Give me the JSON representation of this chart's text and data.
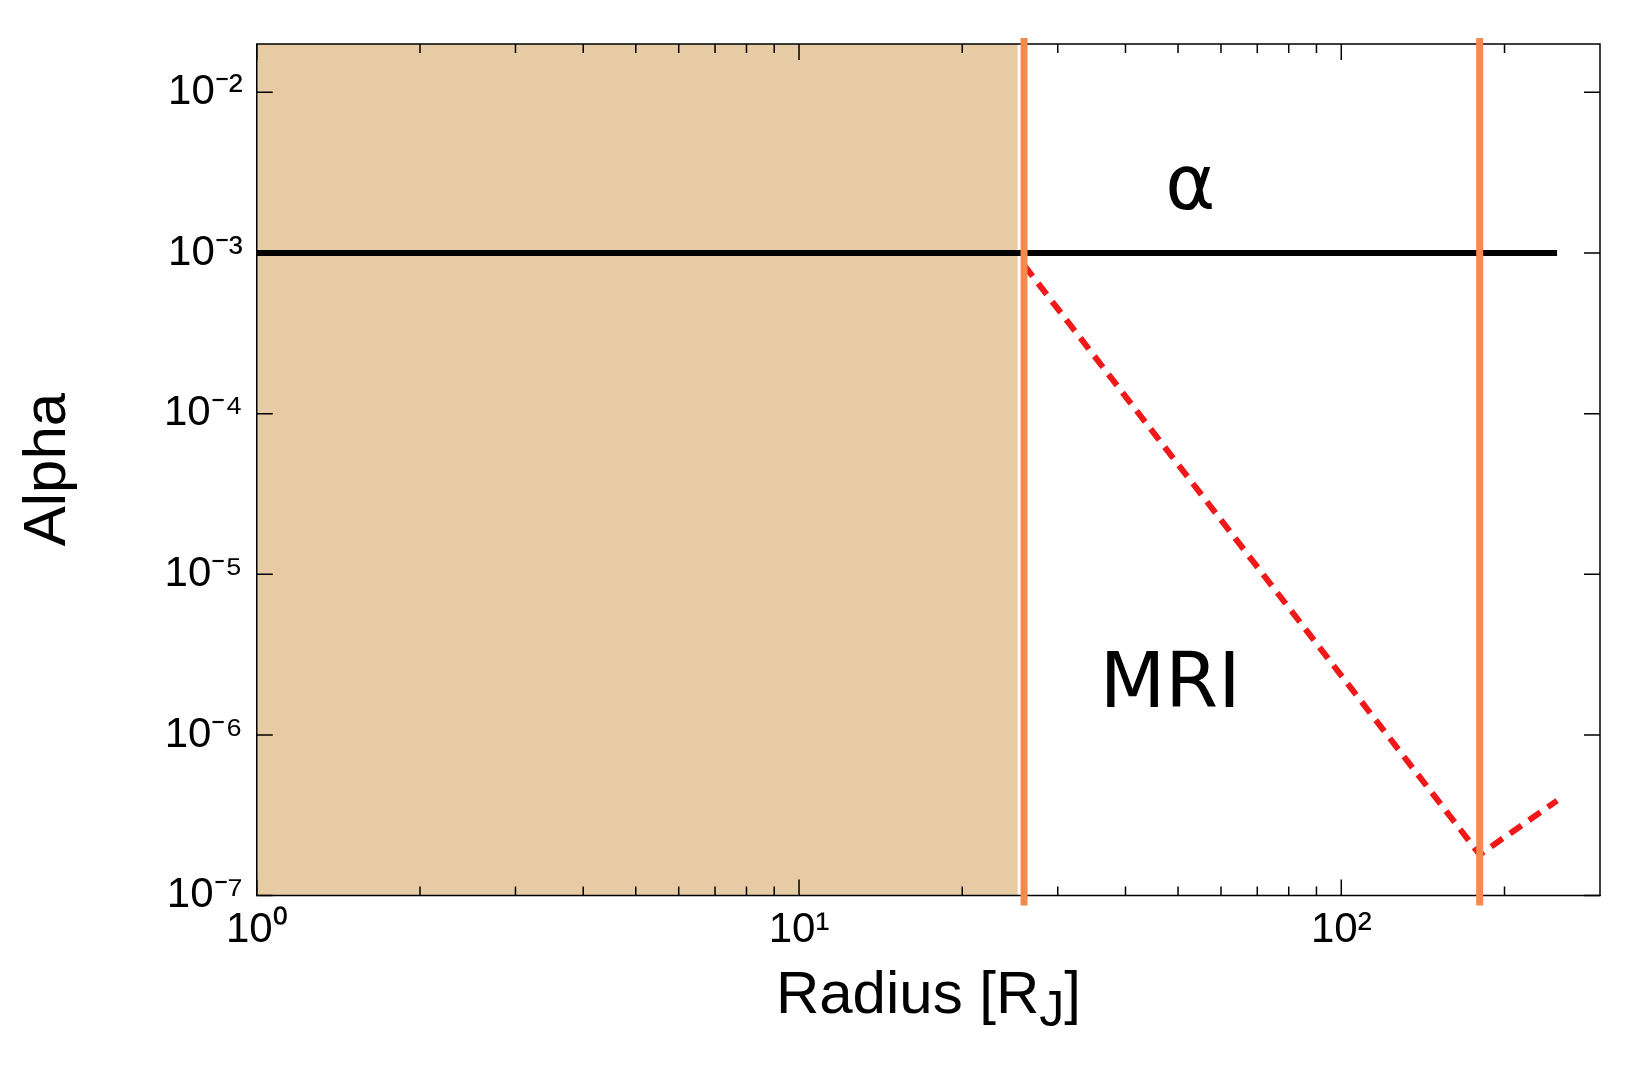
{
  "chart_data": {
    "type": "line",
    "xlabel": "Radius [R$_{J}$]",
    "ylabel": "Alpha",
    "log": "xy",
    "grid": false,
    "legend": false,
    "marker": "none",
    "xlim": [
      1,
      300
    ],
    "ylim": [
      1e-07,
      0.02
    ],
    "xticks": [
      {
        "value": 1,
        "label": "10⁰"
      },
      {
        "value": 2,
        "label": null
      },
      {
        "value": 3,
        "label": null
      },
      {
        "value": 4,
        "label": null
      },
      {
        "value": 5,
        "label": null
      },
      {
        "value": 6,
        "label": null
      },
      {
        "value": 7,
        "label": null
      },
      {
        "value": 8,
        "label": null
      },
      {
        "value": 9,
        "label": null
      },
      {
        "value": 10,
        "label": "10¹"
      },
      {
        "value": 20,
        "label": null
      },
      {
        "value": 30,
        "label": null
      },
      {
        "value": 40,
        "label": null
      },
      {
        "value": 50,
        "label": null
      },
      {
        "value": 60,
        "label": null
      },
      {
        "value": 70,
        "label": null
      },
      {
        "value": 80,
        "label": null
      },
      {
        "value": 90,
        "label": null
      },
      {
        "value": 100,
        "label": "10²"
      },
      {
        "value": 200,
        "label": null
      }
    ],
    "yticks": [
      {
        "value": 1e-07,
        "label": "10⁻⁷"
      },
      {
        "value": 1e-06,
        "label": "10⁻⁶"
      },
      {
        "value": 1e-05,
        "label": "10⁻⁵"
      },
      {
        "value": 0.0001,
        "label": "10⁻⁴"
      },
      {
        "value": 0.001,
        "label": "10⁻³"
      },
      {
        "value": 0.01,
        "label": "10⁻²"
      }
    ],
    "series": [
      {
        "color": "#000000",
        "line_style": "solid",
        "x": [
          1,
          250
        ],
        "values": [
          0.001,
          0.001
        ]
      },
      {
        "color": "#f01818",
        "line_style": "dashed",
        "x": [
          26,
          180,
          250
        ],
        "values": [
          0.00084,
          1.8e-07,
          3.9e-07
        ]
      }
    ],
    "bands": [
      {
        "axis": "x",
        "from": 1,
        "to": 25.3,
        "color": "#e6cba4"
      }
    ],
    "ref_lines": [
      {
        "axis": "x",
        "value": 26,
        "color": "#f58a4d"
      },
      {
        "axis": "x",
        "value": 180,
        "color": "#f58a4d"
      }
    ],
    "annotations": [
      "α",
      "MRI"
    ]
  }
}
